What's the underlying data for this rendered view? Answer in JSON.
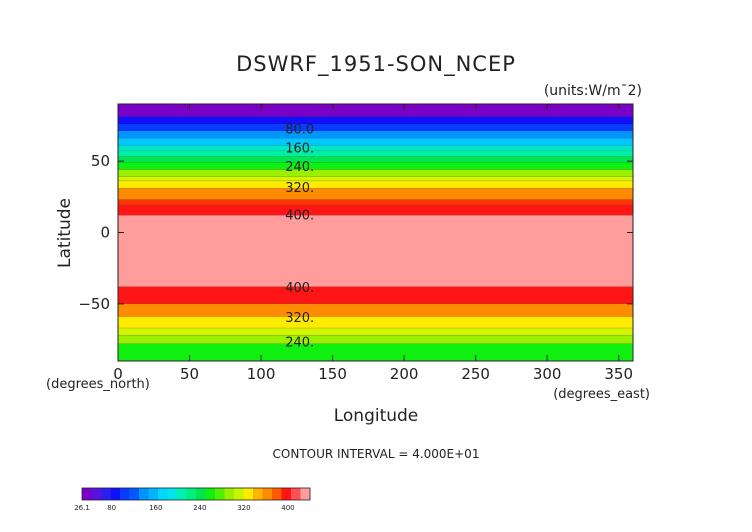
{
  "chart_data": {
    "type": "heatmap",
    "title": "DSWRF_1951-SON_NCEP",
    "units_label": "(units:W/m¯2)",
    "xlabel": "Longitude",
    "ylabel": "Latitude",
    "x_unit_note": "(degrees_east)",
    "y_unit_note": "(degrees_north)",
    "xlim": [
      0,
      360
    ],
    "ylim": [
      -90,
      90
    ],
    "x_ticks": [
      0,
      50,
      100,
      150,
      200,
      250,
      300,
      350
    ],
    "y_ticks": [
      -50,
      0,
      50
    ],
    "x_tick_labels": [
      "0",
      "50",
      "100",
      "150",
      "200",
      "250",
      "300",
      "350"
    ],
    "y_tick_labels": [
      "−50",
      "0",
      "50"
    ],
    "contour_interval_text": "CONTOUR INTERVAL = 4.000E+01",
    "bands": [
      {
        "lat_from": 90,
        "lat_to": 81,
        "color": "#7a00c8"
      },
      {
        "lat_from": 81,
        "lat_to": 76,
        "color": "#1010ff"
      },
      {
        "lat_from": 76,
        "lat_to": 71,
        "color": "#0a3cff"
      },
      {
        "lat_from": 71,
        "lat_to": 66,
        "color": "#0094ff"
      },
      {
        "lat_from": 66,
        "lat_to": 61,
        "color": "#00c8ff"
      },
      {
        "lat_from": 61,
        "lat_to": 57,
        "color": "#00e6c8"
      },
      {
        "lat_from": 57,
        "lat_to": 53,
        "color": "#00f0a0"
      },
      {
        "lat_from": 53,
        "lat_to": 49,
        "color": "#00e650"
      },
      {
        "lat_from": 49,
        "lat_to": 44,
        "color": "#10f010"
      },
      {
        "lat_from": 44,
        "lat_to": 39,
        "color": "#9bf000"
      },
      {
        "lat_from": 39,
        "lat_to": 36,
        "color": "#d4f500"
      },
      {
        "lat_from": 36,
        "lat_to": 31,
        "color": "#ffeb00"
      },
      {
        "lat_from": 31,
        "lat_to": 23,
        "color": "#ff8c00"
      },
      {
        "lat_from": 23,
        "lat_to": 19,
        "color": "#ff3300"
      },
      {
        "lat_from": 19,
        "lat_to": 12,
        "color": "#ff1515"
      },
      {
        "lat_from": 12,
        "lat_to": -38,
        "color": "#ff9d9d"
      },
      {
        "lat_from": -38,
        "lat_to": -50,
        "color": "#ff1515"
      },
      {
        "lat_from": -50,
        "lat_to": -59,
        "color": "#ff8c00"
      },
      {
        "lat_from": -59,
        "lat_to": -67,
        "color": "#ffeb00"
      },
      {
        "lat_from": -67,
        "lat_to": -72,
        "color": "#d4f500"
      },
      {
        "lat_from": -72,
        "lat_to": -78,
        "color": "#9bf000"
      },
      {
        "lat_from": -78,
        "lat_to": -90,
        "color": "#10f010"
      }
    ],
    "contour_labels": [
      {
        "text": "80.0",
        "lat": 72
      },
      {
        "text": "160.",
        "lat": 59
      },
      {
        "text": "240.",
        "lat": 46
      },
      {
        "text": "320.",
        "lat": 31
      },
      {
        "text": "400.",
        "lat": 12
      },
      {
        "text": "400.",
        "lat": -39
      },
      {
        "text": "320.",
        "lat": -60
      },
      {
        "text": "240.",
        "lat": -77
      }
    ],
    "colorbar": {
      "min_label": "26.1",
      "tick_labels": [
        {
          "text": "26.1",
          "value": 26.1
        },
        {
          "text": "80",
          "value": 80
        },
        {
          "text": "160",
          "value": 160
        },
        {
          "text": "240",
          "value": 240
        },
        {
          "text": "320",
          "value": 320
        },
        {
          "text": "400",
          "value": 400
        }
      ],
      "range": [
        26.1,
        440
      ],
      "colors": [
        "#7a00c8",
        "#5a10dc",
        "#2a20f0",
        "#1010ff",
        "#0a3cff",
        "#005aff",
        "#0094ff",
        "#00b4ff",
        "#00d8ff",
        "#00e6e6",
        "#00f0b4",
        "#00f080",
        "#00e650",
        "#10f010",
        "#50f000",
        "#9bf000",
        "#c8f500",
        "#ffeb00",
        "#ffb400",
        "#ff8c00",
        "#ff5a00",
        "#ff1515",
        "#ff5050",
        "#ff9d9d"
      ]
    }
  }
}
